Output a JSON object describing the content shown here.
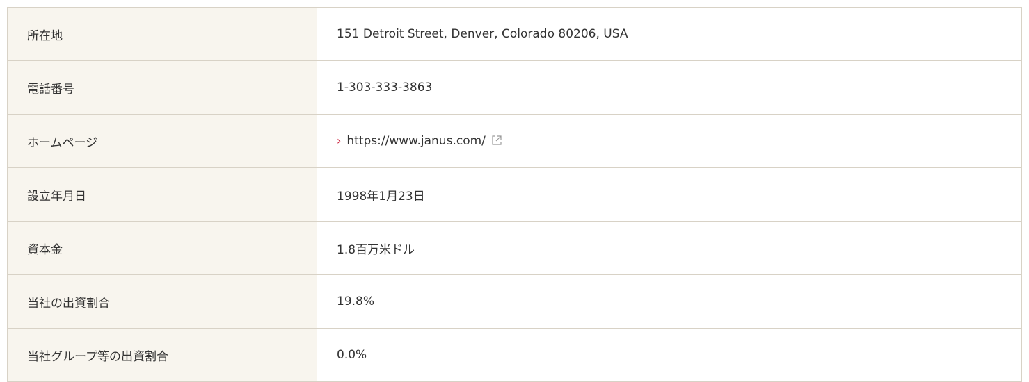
{
  "table": {
    "rows": [
      [
        "所在地",
        "151 Detroit Street, Denver, Colorado 80206, USA"
      ],
      [
        "電話番号",
        "1-303-333-3863"
      ],
      [
        "ホームページ",
        "https://www.janus.com/"
      ],
      [
        "設立年月日",
        "1998年1月23日"
      ],
      [
        "資本金",
        "1.8百万米ドル"
      ],
      [
        "当社の出資割合",
        "19.8%"
      ],
      [
        "当社グループ等の出資割合",
        "0.0%"
      ]
    ]
  }
}
